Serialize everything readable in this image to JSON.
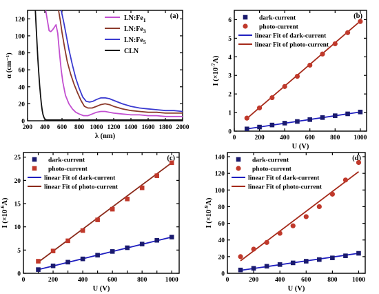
{
  "chart_data": [
    {
      "type": "line",
      "panel": "(a)",
      "xlabel": "λ (nm)",
      "ylabel": "α (cm⁻¹)",
      "xlim": [
        200,
        2000
      ],
      "ylim": [
        0,
        130
      ],
      "xticks": [
        200,
        400,
        600,
        800,
        1000,
        1200,
        1400,
        1600,
        1800,
        2000
      ],
      "yticks": [
        0,
        20,
        40,
        60,
        80,
        100,
        120
      ],
      "legend_position": "top-right",
      "series": [
        {
          "name": "LN:Fe1",
          "label_base": "LN:Fe",
          "label_sub": "1",
          "color": "#c24fd0",
          "x": [
            410,
            430,
            450,
            470,
            490,
            510,
            530,
            550,
            570,
            590,
            610,
            640,
            680,
            720,
            760,
            800,
            850,
            900,
            950,
            1000,
            1050,
            1100,
            1150,
            1200,
            1300,
            1400,
            1500,
            1600,
            1700,
            1800,
            1900,
            2000
          ],
          "y": [
            130,
            118,
            106,
            105,
            107,
            110,
            113,
            103,
            80,
            60,
            45,
            30,
            20,
            14,
            10,
            8,
            6,
            6,
            8,
            10,
            11,
            11,
            10,
            9,
            8,
            7,
            7,
            6,
            6,
            5,
            5,
            5
          ]
        },
        {
          "name": "LN:Fe3",
          "label_base": "LN:Fe",
          "label_sub": "3",
          "color": "#8b3a2b",
          "x": [
            560,
            580,
            600,
            630,
            660,
            700,
            740,
            780,
            820,
            860,
            900,
            950,
            1000,
            1050,
            1100,
            1150,
            1200,
            1300,
            1400,
            1500,
            1600,
            1700,
            1800,
            1900,
            2000
          ],
          "y": [
            130,
            118,
            104,
            86,
            70,
            55,
            43,
            33,
            24,
            17,
            15,
            15,
            17,
            19,
            20,
            19,
            17,
            14,
            12,
            11,
            10,
            10,
            9,
            9,
            9
          ],
          "clip": true
        },
        {
          "name": "LN:Fe5",
          "label_base": "LN:Fe",
          "label_sub": "5",
          "color": "#3a3ad0",
          "x": [
            590,
            620,
            650,
            680,
            720,
            760,
            800,
            840,
            880,
            920,
            960,
            1000,
            1050,
            1100,
            1150,
            1200,
            1300,
            1400,
            1500,
            1600,
            1700,
            1800,
            1900,
            2000
          ],
          "y": [
            130,
            116,
            100,
            84,
            66,
            50,
            38,
            28,
            23,
            22,
            23,
            25,
            27,
            27,
            26,
            24,
            20,
            17,
            15,
            14,
            13,
            12,
            12,
            11
          ],
          "clip": true
        },
        {
          "name": "CLN",
          "label_base": "CLN",
          "label_sub": "",
          "color": "#111111",
          "x": [
            290,
            300,
            310,
            320,
            330,
            340,
            350,
            360,
            370,
            380,
            390,
            400,
            420,
            460,
            600,
            800,
            1000,
            1500,
            2000
          ],
          "y": [
            130,
            110,
            90,
            72,
            56,
            42,
            30,
            20,
            12,
            7,
            4,
            2,
            1,
            1,
            1,
            1,
            1,
            1,
            1
          ]
        }
      ]
    },
    {
      "type": "scatter",
      "panel": "(b)",
      "xlabel": "U (V)",
      "ylabel": "I (×10⁻⁷ A)",
      "ylabel_parts": {
        "prefix": "I (×10",
        "exp": "-7",
        "suffix": "A)"
      },
      "xlim": [
        0,
        1050
      ],
      "ylim": [
        0,
        6.5
      ],
      "xticks": [
        0,
        200,
        400,
        600,
        800,
        1000
      ],
      "yticks": [
        0,
        1,
        2,
        3,
        4,
        5,
        6
      ],
      "legend_position": "top-left",
      "x": [
        100,
        200,
        300,
        400,
        500,
        600,
        700,
        800,
        900,
        1000
      ],
      "series": [
        {
          "name": "dark-current",
          "marker": "square",
          "color": "#1a1a6e",
          "values": [
            0.12,
            0.22,
            0.33,
            0.43,
            0.52,
            0.62,
            0.73,
            0.83,
            0.93,
            1.03
          ]
        },
        {
          "name": "photo-current",
          "marker": "circle",
          "color": "#c0392b",
          "values": [
            0.7,
            1.25,
            1.8,
            2.4,
            2.95,
            3.55,
            4.15,
            4.7,
            5.3,
            5.9
          ]
        }
      ],
      "fits": [
        {
          "name": "linear Fit of dark-current",
          "color": "#1f1fc0",
          "x": [
            100,
            1000
          ],
          "y": [
            0.12,
            1.03
          ]
        },
        {
          "name": "linear Fit of photo-current",
          "color": "#a52a1a",
          "x": [
            100,
            1000
          ],
          "y": [
            0.68,
            5.92
          ]
        }
      ]
    },
    {
      "type": "scatter",
      "panel": "(c)",
      "xlabel": "U (V)",
      "ylabel": "I (×10⁻⁶ A)",
      "ylabel_parts": {
        "prefix": "I (×10",
        "exp": "-6",
        "suffix": "A)"
      },
      "xlim": [
        0,
        1050
      ],
      "ylim": [
        0,
        26
      ],
      "xticks": [
        0,
        100,
        200,
        300,
        400,
        500,
        600,
        700,
        800,
        900,
        1000
      ],
      "xticklabels": [
        "0",
        "",
        "200",
        "",
        "400",
        "",
        "600",
        "",
        "800",
        "",
        "1000"
      ],
      "yticks": [
        0,
        5,
        10,
        15,
        20,
        25
      ],
      "legend_position": "top-left",
      "x": [
        100,
        200,
        300,
        400,
        500,
        600,
        700,
        800,
        900,
        1000
      ],
      "series": [
        {
          "name": "dark-current",
          "marker": "square",
          "color": "#1a1a6e",
          "values": [
            0.8,
            1.6,
            2.4,
            3.1,
            3.9,
            4.7,
            5.5,
            6.3,
            7.1,
            7.8
          ]
        },
        {
          "name": "photo-current",
          "marker": "square",
          "color": "#c0392b",
          "values": [
            2.6,
            4.8,
            7.0,
            9.2,
            11.5,
            13.8,
            16.0,
            18.4,
            21.0,
            23.8
          ]
        }
      ],
      "fits": [
        {
          "name": "linear Fit of dark-current",
          "color": "#1f1fc0",
          "x": [
            100,
            1000
          ],
          "y": [
            0.8,
            7.8
          ]
        },
        {
          "name": "linear Fit of photo-current",
          "color": "#8b2a1a",
          "x": [
            100,
            1000
          ],
          "y": [
            2.4,
            23.8
          ]
        }
      ]
    },
    {
      "type": "scatter",
      "panel": "(d)",
      "xlabel": "U (V)",
      "ylabel": "I (×10⁻⁹ A)",
      "ylabel_parts": {
        "prefix": "I (×10",
        "exp": "-9",
        "suffix": "A)"
      },
      "xlim": [
        0,
        1050
      ],
      "ylim": [
        0,
        145
      ],
      "xticks": [
        0,
        200,
        400,
        600,
        800,
        1000
      ],
      "yticks": [
        0,
        20,
        40,
        60,
        80,
        100,
        120,
        140
      ],
      "legend_position": "top-left",
      "x": [
        100,
        200,
        300,
        400,
        500,
        600,
        700,
        800,
        900,
        1000
      ],
      "series": [
        {
          "name": "dark-current",
          "marker": "square",
          "color": "#1a1a6e",
          "values": [
            4,
            6,
            8.5,
            10.5,
            12.5,
            14.5,
            16.5,
            18.5,
            21,
            24
          ]
        },
        {
          "name": "photo-current",
          "marker": "circle",
          "color": "#c0392b",
          "values": [
            20,
            29,
            37,
            48,
            57,
            68,
            80,
            95,
            112,
            133
          ]
        }
      ],
      "fits": [
        {
          "name": "linear Fit of dark-current",
          "color": "#1f1fc0",
          "x": [
            100,
            1000
          ],
          "y": [
            3.5,
            24
          ]
        },
        {
          "name": "linear Fit of photo-current",
          "color": "#a52a1a",
          "x": [
            100,
            1000
          ],
          "y": [
            15,
            122
          ]
        }
      ]
    }
  ]
}
